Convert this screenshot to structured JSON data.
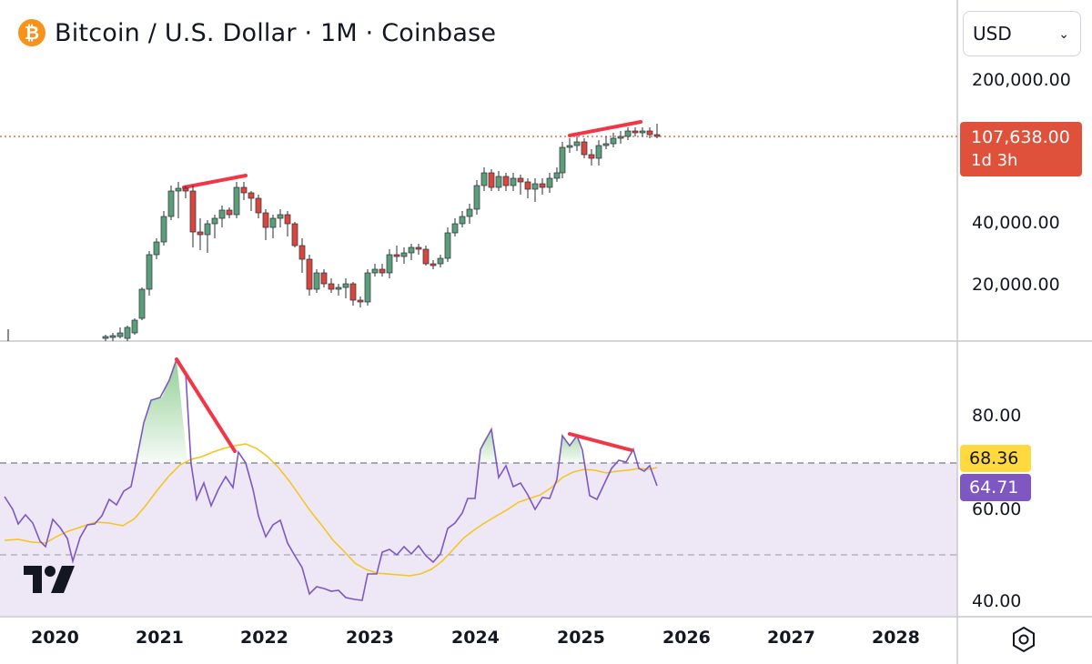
{
  "header": {
    "logo_glyph": "₿",
    "title": "Bitcoin / U.S. Dollar · 1M · Coinbase"
  },
  "currency_select": {
    "value": "USD"
  },
  "price_axis": {
    "labels": [
      "200,000.00",
      "40,000.00",
      "20,000.00"
    ]
  },
  "last_price": {
    "value": "107,638.00",
    "countdown": "1d 3h",
    "color": "#e0513b"
  },
  "rsi_axis": {
    "labels": [
      "80.00",
      "60.00",
      "40.00"
    ]
  },
  "rsi_badges": {
    "ma_value": "68.36",
    "rsi_value": "64.71"
  },
  "time_axis": {
    "labels": [
      "2020",
      "2021",
      "2022",
      "2023",
      "2024",
      "2025",
      "2026",
      "2027",
      "2028"
    ]
  },
  "colors": {
    "up": "#5b9e7a",
    "down": "#d9473c",
    "rsi_line": "#7e57c2",
    "rsi_ma": "#f5c518",
    "divergence": "#f23645",
    "rsi_band": "#ede7f6"
  },
  "chart_data": {
    "type": "candlestick",
    "symbol": "Bitcoin / U.S. Dollar",
    "interval": "1M",
    "exchange": "Coinbase",
    "last_price": 107638,
    "rsi": 64.71,
    "rsi_ma": 68.36
  }
}
